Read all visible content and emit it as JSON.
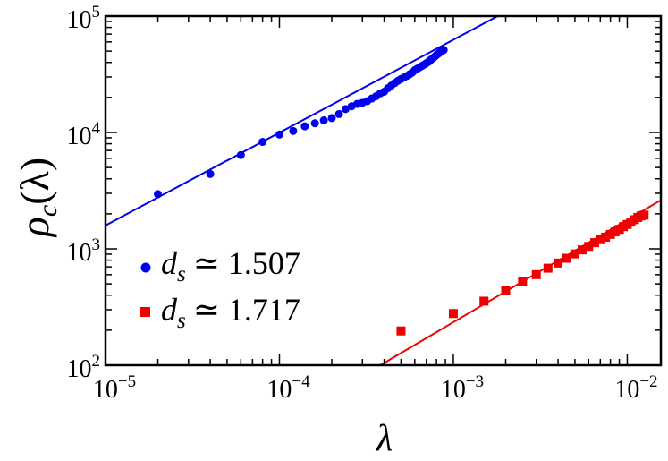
{
  "chart_data": {
    "type": "scatter",
    "x_scale": "log",
    "y_scale": "log",
    "xlim": [
      1e-05,
      0.0156
    ],
    "ylim": [
      100,
      100000
    ],
    "xlabel": "λ",
    "ylabel": {
      "main": "ρ",
      "sub": "c",
      "arg": "(λ)"
    },
    "x_ticks": [
      {
        "value": 1e-05,
        "base": "10",
        "exp": "−5"
      },
      {
        "value": 0.0001,
        "base": "10",
        "exp": "−4"
      },
      {
        "value": 0.001,
        "base": "10",
        "exp": "−3"
      },
      {
        "value": 0.01,
        "base": "10",
        "exp": "−2"
      }
    ],
    "y_ticks": [
      {
        "value": 100,
        "base": "10",
        "exp": "2"
      },
      {
        "value": 1000,
        "base": "10",
        "exp": "3"
      },
      {
        "value": 10000,
        "base": "10",
        "exp": "4"
      },
      {
        "value": 100000,
        "base": "10",
        "exp": "5"
      }
    ],
    "grid": false,
    "legend_position": "bottom-left",
    "series": [
      {
        "name": "d_s ≃ 1.507",
        "legend_symbol": "d",
        "legend_sub": "s",
        "legend_value": "≃ 1.507",
        "color": "#0000ee",
        "marker": "circle",
        "points": [
          [
            2e-05,
            2950
          ],
          [
            4e-05,
            4400
          ],
          [
            6e-05,
            6400
          ],
          [
            8e-05,
            8300
          ],
          [
            0.0001,
            9600
          ],
          [
            0.00012,
            10300
          ],
          [
            0.00014,
            11300
          ],
          [
            0.00016,
            12000
          ],
          [
            0.00018,
            12700
          ],
          [
            0.0002,
            13300
          ],
          [
            0.00022,
            14400
          ],
          [
            0.00024,
            15900
          ],
          [
            0.00026,
            16800
          ],
          [
            0.00028,
            17600
          ],
          [
            0.0003,
            18000
          ],
          [
            0.00032,
            18600
          ],
          [
            0.00034,
            19600
          ],
          [
            0.00036,
            20500
          ],
          [
            0.00038,
            21700
          ],
          [
            0.0004,
            22400
          ],
          [
            0.00042,
            24000
          ],
          [
            0.00044,
            25300
          ],
          [
            0.00046,
            26600
          ],
          [
            0.00048,
            27800
          ],
          [
            0.0005,
            28800
          ],
          [
            0.00052,
            29700
          ],
          [
            0.00054,
            30600
          ],
          [
            0.00056,
            31600
          ],
          [
            0.00058,
            32700
          ],
          [
            0.0006,
            34300
          ],
          [
            0.00062,
            35300
          ],
          [
            0.00064,
            36300
          ],
          [
            0.00066,
            37300
          ],
          [
            0.00068,
            38300
          ],
          [
            0.0007,
            39400
          ],
          [
            0.00072,
            40500
          ],
          [
            0.00074,
            42000
          ],
          [
            0.00076,
            43300
          ],
          [
            0.00078,
            44700
          ],
          [
            0.0008,
            46200
          ],
          [
            0.00082,
            47600
          ],
          [
            0.00084,
            48900
          ],
          [
            0.00086,
            50100
          ],
          [
            0.00088,
            51200
          ]
        ],
        "fit": {
          "x": [
            9.3e-06,
            0.0018
          ],
          "y": [
            1500,
            100000
          ]
        }
      },
      {
        "name": "d_s ≃ 1.717",
        "legend_symbol": "d",
        "legend_sub": "s",
        "legend_value": "≃ 1.717",
        "color": "#ee0000",
        "marker": "square",
        "points": [
          [
            0.0005,
            197
          ],
          [
            0.001,
            278
          ],
          [
            0.0015,
            355
          ],
          [
            0.002,
            438
          ],
          [
            0.0025,
            520
          ],
          [
            0.003,
            600
          ],
          [
            0.0035,
            682
          ],
          [
            0.004,
            755
          ],
          [
            0.0045,
            830
          ],
          [
            0.005,
            905
          ],
          [
            0.0055,
            980
          ],
          [
            0.006,
            1050
          ],
          [
            0.0065,
            1130
          ],
          [
            0.007,
            1200
          ],
          [
            0.0075,
            1260
          ],
          [
            0.008,
            1330
          ],
          [
            0.0085,
            1400
          ],
          [
            0.009,
            1470
          ],
          [
            0.0095,
            1550
          ],
          [
            0.01,
            1620
          ],
          [
            0.0105,
            1700
          ],
          [
            0.011,
            1780
          ],
          [
            0.0115,
            1860
          ],
          [
            0.012,
            1920
          ],
          [
            0.0125,
            1950
          ]
        ],
        "fit": {
          "x": [
            0.00038,
            0.0156
          ],
          "y": [
            100,
            2620
          ]
        }
      }
    ]
  }
}
